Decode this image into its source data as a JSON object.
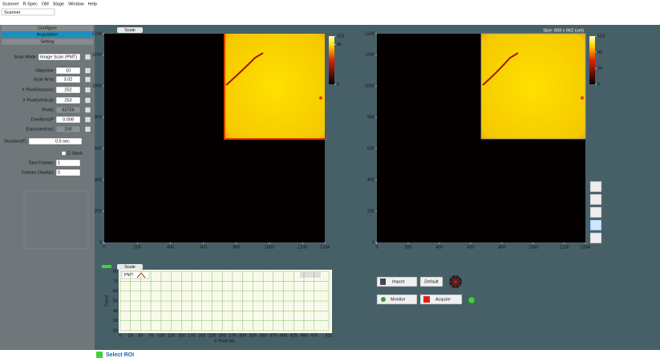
{
  "menu": [
    "Scanner",
    "R-Spec",
    "OM",
    "Stage",
    "Window",
    "Help"
  ],
  "tab": "Scanner",
  "sidebar": {
    "sections": [
      "Configure",
      "Acquisition",
      "Setting"
    ],
    "fields": [
      {
        "label": "Scan Mode",
        "value": "Image Scan (PMT)"
      },
      {
        "label": "Objective",
        "value": "10"
      },
      {
        "label": "Scan Area",
        "value": "3.02"
      },
      {
        "label": "X Pixel(Horizon)",
        "value": "252"
      },
      {
        "label": "Y Pixel(Vertical)",
        "value": "253"
      },
      {
        "label": "Pixels",
        "value": "63756",
        "disabled": true
      },
      {
        "label": "Dwell(ms)P",
        "value": "0.008"
      },
      {
        "label": "Exposure(ms)",
        "value": "200",
        "disabled": true
      },
      {
        "label": "Duration(F)",
        "value": "0.5 sec"
      },
      {
        "label": "Total Frames",
        "value": "1"
      },
      {
        "label": "Frames Dwell(s)",
        "value": "0"
      }
    ],
    "zstack": "Z-Stack"
  },
  "left_image": {
    "scale_button": "Scale",
    "xlim": [
      0,
      1334
    ],
    "xticks": [
      0,
      200,
      400,
      600,
      800,
      1000,
      1200,
      1334
    ],
    "ylim": [
      0,
      1334
    ],
    "yticks": [
      0,
      200,
      400,
      600,
      800,
      1000,
      1200,
      1334
    ],
    "colorbar": {
      "lim": [
        0,
        103
      ],
      "ticks": [
        103,
        85,
        0
      ]
    }
  },
  "right_image": {
    "size_label": "Size: 659 x 662 (um)",
    "xlim": [
      0,
      1334
    ],
    "xticks": [
      0,
      200,
      400,
      600,
      800,
      1000,
      1200,
      1334
    ],
    "ylim": [
      0,
      1334
    ],
    "yticks": [
      0,
      200,
      400,
      600,
      800,
      1000,
      1200,
      1334
    ],
    "colorbar": {
      "lim": [
        0,
        103
      ],
      "ticks": [
        103,
        69,
        34,
        0
      ]
    }
  },
  "profile": {
    "scale_button": "Scale",
    "legend": "PMT",
    "ylabel": "Count",
    "xlabel": "X Pixel No",
    "xlim": [
      0,
      511
    ],
    "xticks": [
      0,
      25,
      50,
      75,
      100,
      125,
      150,
      175,
      200,
      225,
      250,
      275,
      300,
      325,
      350,
      375,
      400,
      425,
      450,
      475,
      511
    ],
    "ylim": [
      20,
      80
    ],
    "yticks": [
      20,
      30,
      40,
      50,
      60,
      70,
      80
    ]
  },
  "buttons": {
    "import": "Import",
    "default": "Default",
    "monitor": "Monitor",
    "acquire": "Acquire"
  },
  "footer": "Select ROI"
}
